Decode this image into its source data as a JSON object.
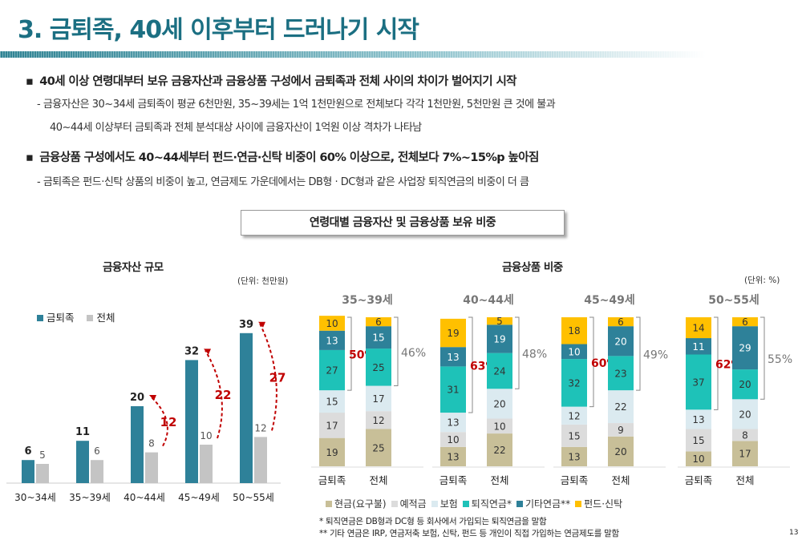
{
  "title": "3. 금퇴족, 40세 이후부터 드러나기 시작",
  "bullets": [
    {
      "text": "40세 이상 연령대부터 보유 금융자산과 금융상품 구성에서 금퇴족과 전체 사이의 차이가 벌어지기 시작",
      "subs": [
        "- 금융자산은 30~34세 금퇴족이 평균 6천만원, 35~39세는 1억 1천만원으로 전체보다 각각 1천만원, 5천만원 큰 것에 불과",
        "40~44세 이상부터 금퇴족과 전체 분석대상 사이에 금융자산이 1억원 이상 격차가 나타남"
      ]
    },
    {
      "text": "금융상품 구성에서도 40~44세부터 펀드·연금·신탁 비중이 60% 이상으로, 전체보다 7%~15%p 높아짐",
      "subs": [
        "- 금퇴족은 펀드·신탁 상품의 비중이 높고, 연금제도 가운데에서는 DB형 · DC형과 같은 사업장 퇴직연금의 비중이 더 큼"
      ]
    }
  ],
  "section_box": "연령대별 금융자산 및 금융상품 보유 비중",
  "page_number": "13",
  "chart_data": [
    {
      "type": "bar",
      "title": "금융자산 규모",
      "unit": "(단위: 천만원)",
      "legend_position": "top-left",
      "categories": [
        "30~34세",
        "35~39세",
        "40~44세",
        "45~49세",
        "50~55세"
      ],
      "series": [
        {
          "name": "금퇴족",
          "color": "#2e8199",
          "values": [
            6,
            11,
            20,
            32,
            39
          ]
        },
        {
          "name": "전체",
          "color": "#c4c4c4",
          "values": [
            5,
            6,
            8,
            10,
            12
          ]
        }
      ],
      "annotations": [
        {
          "category": "40~44세",
          "gap": "12"
        },
        {
          "category": "45~49세",
          "gap": "22"
        },
        {
          "category": "50~55세",
          "gap": "27"
        }
      ]
    },
    {
      "type": "stacked-bar",
      "title": "금융상품 비중",
      "unit": "(단위: %)",
      "groups": [
        "35~39세",
        "40~44세",
        "45~49세",
        "50~55세"
      ],
      "bars": [
        "금퇴족",
        "전체"
      ],
      "series": [
        {
          "name": "현금(요구불)",
          "color": "#c8bf98",
          "values": [
            [
              19,
              25
            ],
            [
              13,
              22
            ],
            [
              13,
              20
            ],
            [
              10,
              17
            ]
          ]
        },
        {
          "name": "예적금",
          "color": "#dcdcdc",
          "values": [
            [
              17,
              12
            ],
            [
              10,
              10
            ],
            [
              15,
              9
            ],
            [
              15,
              8
            ]
          ]
        },
        {
          "name": "보험",
          "color": "#dbeaf0",
          "values": [
            [
              15,
              17
            ],
            [
              13,
              20
            ],
            [
              12,
              22
            ],
            [
              13,
              20
            ]
          ]
        },
        {
          "name": "퇴직연금*",
          "color": "#1ec2b8",
          "values": [
            [
              27,
              25
            ],
            [
              31,
              24
            ],
            [
              32,
              23
            ],
            [
              37,
              20
            ]
          ]
        },
        {
          "name": "기타연금**",
          "color": "#2e8199",
          "values": [
            [
              13,
              15
            ],
            [
              13,
              19
            ],
            [
              10,
              20
            ],
            [
              11,
              29
            ]
          ]
        },
        {
          "name": "펀드·신탁",
          "color": "#ffc000",
          "values": [
            [
              10,
              6
            ],
            [
              19,
              5
            ],
            [
              18,
              6
            ],
            [
              14,
              6
            ]
          ]
        }
      ],
      "bracket_totals": [
        [
          "50%",
          "46%"
        ],
        [
          "63%",
          "48%"
        ],
        [
          "60%",
          "49%"
        ],
        [
          "62%",
          "55%"
        ]
      ]
    }
  ],
  "footnotes": [
    "* 퇴직연금은 DB형과 DC형 등 회사에서 가입되는 퇴직연금을 말함",
    "** 기타 연금은 IRP, 연금저축 보험, 신탁, 펀드 등 개인이 직접 가입하는 연금제도를 말함"
  ]
}
